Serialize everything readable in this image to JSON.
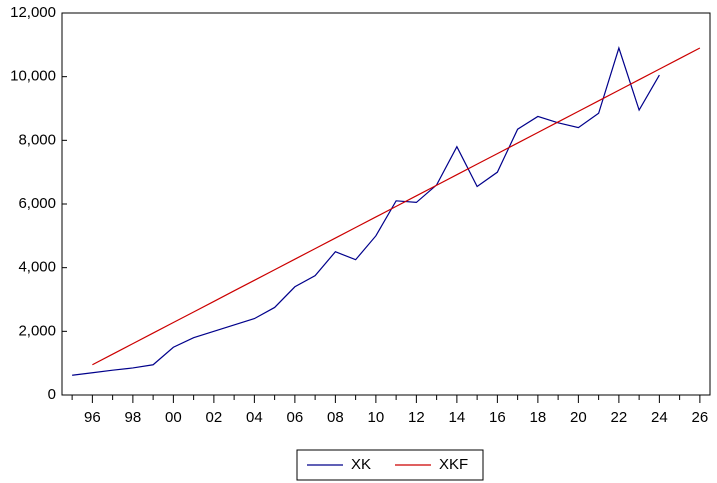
{
  "chart_data": {
    "type": "line",
    "categories": [
      null,
      "96",
      null,
      "98",
      null,
      "00",
      null,
      "02",
      null,
      "04",
      null,
      "06",
      null,
      "08",
      null,
      "10",
      null,
      "12",
      null,
      "14",
      null,
      "16",
      null,
      "18",
      null,
      "20",
      null,
      "22",
      null,
      "24",
      null,
      "26"
    ],
    "series": [
      {
        "name": "XK",
        "color": "#00008b",
        "values": [
          620,
          700,
          780,
          850,
          950,
          1500,
          1800,
          2000,
          2200,
          2400,
          2750,
          3400,
          3750,
          4500,
          4250,
          5000,
          6100,
          6050,
          6600,
          7800,
          6550,
          7000,
          8350,
          8750,
          8550,
          8400,
          8850,
          10900,
          8950,
          10050,
          null,
          null
        ]
      },
      {
        "name": "XKF",
        "color": "#cc0000",
        "values": [
          null,
          950,
          1282,
          1613,
          1945,
          2277,
          2608,
          2940,
          3272,
          3603,
          3935,
          4267,
          4598,
          4930,
          5262,
          5593,
          5925,
          6257,
          6588,
          6920,
          7252,
          7583,
          7915,
          8247,
          8578,
          8910,
          9242,
          9573,
          9905,
          10237,
          10568,
          10900
        ]
      }
    ],
    "ylim": [
      0,
      12000
    ],
    "yticks": [
      0,
      {
        "value": 2000,
        "label": "2,000"
      },
      {
        "value": 4000,
        "label": "4,000"
      },
      {
        "value": 6000,
        "label": "6,000"
      },
      {
        "value": 8000,
        "label": "8,000"
      },
      {
        "value": 10000,
        "label": "10,000"
      },
      {
        "value": 12000,
        "label": "12,000"
      }
    ],
    "legend": "bottom"
  }
}
